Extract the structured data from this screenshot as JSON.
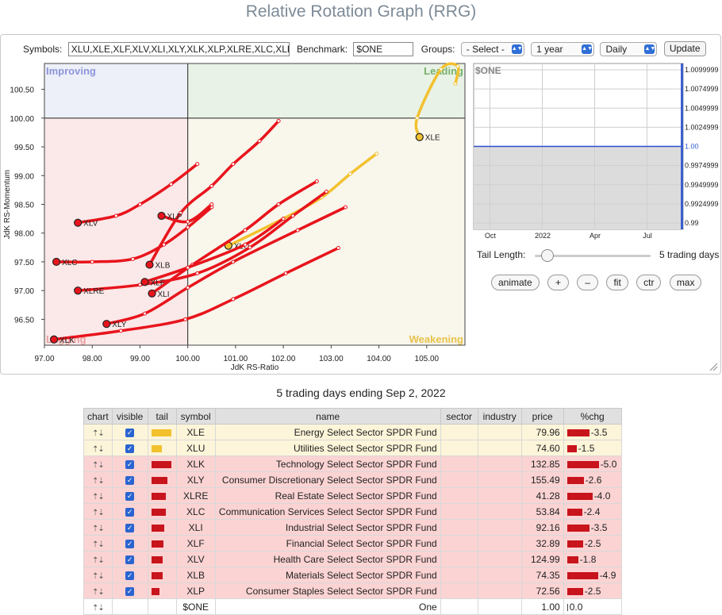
{
  "page": {
    "title": "Relative Rotation Graph (RRG)",
    "subtitle": "5 trading days ending Sep 2, 2022"
  },
  "controls": {
    "symbols_label": "Symbols:",
    "symbols_value": "XLU,XLE,XLF,XLV,XLI,XLY,XLK,XLP,XLRE,XLC,XLB",
    "benchmark_label": "Benchmark:",
    "benchmark_value": "$ONE",
    "groups_label": "Groups:",
    "groups_value": "- Select -",
    "period_value": "1 year",
    "frequency_value": "Daily",
    "update_label": "Update"
  },
  "quadrants": {
    "improving": "Improving",
    "leading": "Leading",
    "lagging": "Lagging",
    "weakening": "Weakening"
  },
  "chart_data": [
    {
      "type": "scatter",
      "title": "",
      "xlabel": "JdK RS-Ratio",
      "ylabel": "JdK RS-Momentum",
      "xlim": [
        97.0,
        105.8
      ],
      "ylim": [
        96.05,
        100.95
      ],
      "xticks": [
        97.0,
        98.0,
        99.0,
        100.0,
        101.0,
        102.0,
        103.0,
        104.0,
        105.0
      ],
      "yticks": [
        96.5,
        97.0,
        97.5,
        98.0,
        98.5,
        99.0,
        99.5,
        100.0,
        100.5
      ],
      "center": [
        100.0,
        100.0
      ],
      "series": [
        {
          "name": "XLE",
          "color": "#f2c12e",
          "points": [
            [
              105.6,
              100.6
            ],
            [
              105.65,
              100.9
            ],
            [
              105.3,
              100.85
            ],
            [
              104.8,
              100.0
            ],
            [
              104.85,
              99.67
            ]
          ]
        },
        {
          "name": "XLU",
          "color": "#f2c12e",
          "points": [
            [
              103.95,
              99.38
            ],
            [
              103.4,
              99.03
            ],
            [
              102.8,
              98.62
            ],
            [
              102.0,
              98.25
            ],
            [
              100.85,
              97.78
            ]
          ]
        },
        {
          "name": "XLK",
          "color": "#e8141c",
          "points": [
            [
              103.15,
              97.74
            ],
            [
              102.05,
              97.3
            ],
            [
              100.95,
              96.85
            ],
            [
              99.95,
              96.5
            ],
            [
              98.6,
              96.3
            ],
            [
              97.2,
              96.15
            ]
          ]
        },
        {
          "name": "XLY",
          "color": "#e8141c",
          "points": [
            [
              103.3,
              98.45
            ],
            [
              102.3,
              98.05
            ],
            [
              100.95,
              97.5
            ],
            [
              100.0,
              97.05
            ],
            [
              99.1,
              96.6
            ],
            [
              98.3,
              96.42
            ]
          ]
        },
        {
          "name": "XLRE",
          "color": "#e8141c",
          "points": [
            [
              102.9,
              98.72
            ],
            [
              102.2,
              98.3
            ],
            [
              101.3,
              97.75
            ],
            [
              100.2,
              97.3
            ],
            [
              99.0,
              97.1
            ],
            [
              97.7,
              97.0
            ]
          ]
        },
        {
          "name": "XLC",
          "color": "#e8141c",
          "points": [
            [
              100.5,
              98.45
            ],
            [
              100.0,
              98.1
            ],
            [
              99.5,
              97.8
            ],
            [
              98.85,
              97.55
            ],
            [
              98.0,
              97.5
            ],
            [
              97.25,
              97.5
            ]
          ]
        },
        {
          "name": "XLI",
          "color": "#e8141c",
          "points": [
            [
              102.7,
              98.9
            ],
            [
              101.9,
              98.5
            ],
            [
              101.2,
              98.05
            ],
            [
              100.1,
              97.45
            ],
            [
              99.25,
              96.95
            ]
          ]
        },
        {
          "name": "XLF",
          "color": "#e8141c",
          "points": [
            [
              102.0,
              98.25
            ],
            [
              101.2,
              97.8
            ],
            [
              100.0,
              97.4
            ],
            [
              99.1,
              97.15
            ]
          ]
        },
        {
          "name": "XLV",
          "color": "#e8141c",
          "points": [
            [
              100.2,
              99.2
            ],
            [
              99.65,
              98.85
            ],
            [
              99.0,
              98.5
            ],
            [
              98.5,
              98.3
            ],
            [
              97.7,
              98.18
            ]
          ]
        },
        {
          "name": "XLB",
          "color": "#e8141c",
          "points": [
            [
              101.9,
              99.95
            ],
            [
              101.5,
              99.6
            ],
            [
              100.95,
              99.2
            ],
            [
              100.5,
              98.82
            ],
            [
              99.85,
              98.35
            ],
            [
              99.2,
              97.45
            ]
          ]
        },
        {
          "name": "XLP",
          "color": "#e8141c",
          "points": [
            [
              100.5,
              98.5
            ],
            [
              100.0,
              98.2
            ],
            [
              99.45,
              98.3
            ]
          ]
        }
      ]
    },
    {
      "type": "line",
      "title": "$ONE",
      "x_ticks": [
        "Oct",
        "2022",
        "Apr",
        "Jul"
      ],
      "y_ticks": [
        "1.0099999",
        "1.0074999",
        "1.0049999",
        "1.0024999",
        "1.00",
        "0.9974999",
        "0.9949999",
        "0.9924999",
        "0.99"
      ],
      "ylim": [
        0.99,
        1.0099999
      ],
      "series": [
        {
          "values": [
            1.0,
            1.0,
            1.0,
            1.0,
            1.0
          ]
        }
      ]
    }
  ],
  "tail": {
    "label": "Tail Length:",
    "value": "5 trading days"
  },
  "buttons": {
    "animate": "animate",
    "plus": "+",
    "minus": "–",
    "fit": "fit",
    "ctr": "ctr",
    "max": "max"
  },
  "table": {
    "headers": [
      "chart",
      "visible",
      "tail",
      "symbol",
      "name",
      "sector",
      "industry",
      "price",
      "%chg"
    ],
    "rows": [
      {
        "symbol": "XLE",
        "name": "Energy Select Sector SPDR Fund",
        "price": "79.96",
        "chg": "-3.5",
        "chg_value": -3.5,
        "tail_length": 0.5,
        "row": "y",
        "color": "#f2c12e"
      },
      {
        "symbol": "XLU",
        "name": "Utilities Select Sector SPDR Fund",
        "price": "74.60",
        "chg": "-1.5",
        "chg_value": -1.5,
        "tail_length": 0.25,
        "row": "y",
        "color": "#f2c12e"
      },
      {
        "symbol": "XLK",
        "name": "Technology Select Sector SPDR Fund",
        "price": "132.85",
        "chg": "-5.0",
        "chg_value": -5.0,
        "tail_length": 0.5,
        "row": "r",
        "color": "#c8141c"
      },
      {
        "symbol": "XLY",
        "name": "Consumer Discretionary Select Sector SPDR Fund",
        "price": "155.49",
        "chg": "-2.6",
        "chg_value": -2.6,
        "tail_length": 0.4,
        "row": "r",
        "color": "#c8141c"
      },
      {
        "symbol": "XLRE",
        "name": "Real Estate Select Sector SPDR Fund",
        "price": "41.28",
        "chg": "-4.0",
        "chg_value": -4.0,
        "tail_length": 0.36,
        "row": "r",
        "color": "#c8141c"
      },
      {
        "symbol": "XLC",
        "name": "Communication Services Select Sector SPDR Fund",
        "price": "53.84",
        "chg": "-2.4",
        "chg_value": -2.4,
        "tail_length": 0.36,
        "row": "r",
        "color": "#c8141c"
      },
      {
        "symbol": "XLI",
        "name": "Industrial Select Sector SPDR Fund",
        "price": "92.16",
        "chg": "-3.5",
        "chg_value": -3.5,
        "tail_length": 0.32,
        "row": "r",
        "color": "#c8141c"
      },
      {
        "symbol": "XLF",
        "name": "Financial Select Sector SPDR Fund",
        "price": "32.89",
        "chg": "-2.5",
        "chg_value": -2.5,
        "tail_length": 0.3,
        "row": "r",
        "color": "#c8141c"
      },
      {
        "symbol": "XLV",
        "name": "Health Care Select Sector SPDR Fund",
        "price": "124.99",
        "chg": "-1.8",
        "chg_value": -1.8,
        "tail_length": 0.27,
        "row": "r",
        "color": "#c8141c"
      },
      {
        "symbol": "XLB",
        "name": "Materials Select Sector SPDR Fund",
        "price": "74.35",
        "chg": "-4.9",
        "chg_value": -4.9,
        "tail_length": 0.27,
        "row": "r",
        "color": "#c8141c"
      },
      {
        "symbol": "XLP",
        "name": "Consumer Staples Select Sector SPDR Fund",
        "price": "72.56",
        "chg": "-2.5",
        "chg_value": -2.5,
        "tail_length": 0.2,
        "row": "r",
        "color": "#c8141c"
      },
      {
        "symbol": "$ONE",
        "name": "One",
        "price": "1.00",
        "chg": "0.0",
        "chg_value": 0.0,
        "tail_length": 0,
        "row": "w",
        "color": "#c8141c"
      }
    ]
  }
}
